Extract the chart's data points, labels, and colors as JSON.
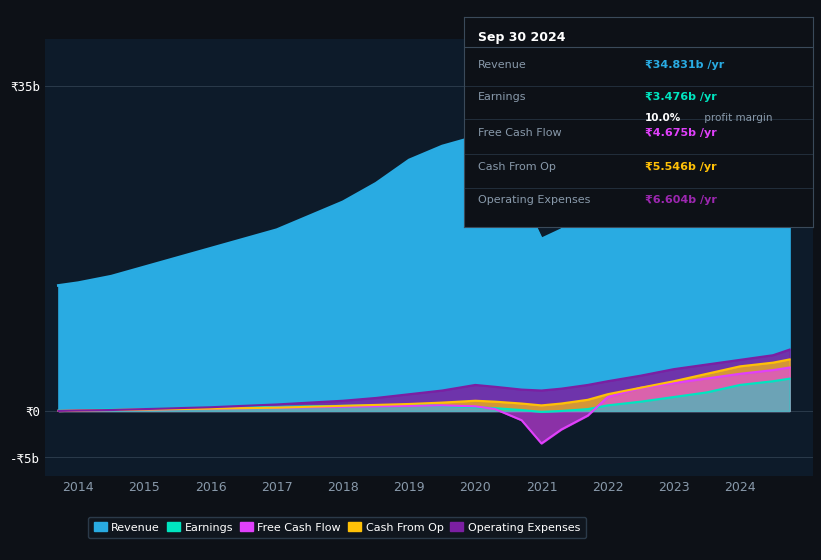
{
  "bg_color": "#0d1117",
  "plot_bg_color": "#0d1b2a",
  "years": [
    2013.7,
    2014,
    2014.5,
    2015,
    2015.5,
    2016,
    2016.5,
    2017,
    2017.5,
    2018,
    2018.5,
    2019,
    2019.5,
    2020,
    2020.3,
    2020.7,
    2021,
    2021.3,
    2021.7,
    2022,
    2022.5,
    2023,
    2023.5,
    2024,
    2024.5,
    2024.75
  ],
  "revenue": [
    13.5,
    13.8,
    14.5,
    15.5,
    16.5,
    17.5,
    18.5,
    19.5,
    21.0,
    22.5,
    24.5,
    27.0,
    28.5,
    29.5,
    28.0,
    23.0,
    18.5,
    19.5,
    22.0,
    26.0,
    29.0,
    32.5,
    33.5,
    34.5,
    34.7,
    34.831
  ],
  "earnings": [
    0.05,
    0.1,
    0.15,
    0.2,
    0.3,
    0.35,
    0.4,
    0.45,
    0.5,
    0.55,
    0.6,
    0.65,
    0.55,
    0.4,
    0.3,
    0.1,
    -0.1,
    0.0,
    0.2,
    0.6,
    1.0,
    1.5,
    2.0,
    2.8,
    3.2,
    3.476
  ],
  "free_cash_flow": [
    0.0,
    0.05,
    0.1,
    0.15,
    0.2,
    0.25,
    0.3,
    0.35,
    0.4,
    0.45,
    0.5,
    0.55,
    0.6,
    0.5,
    0.2,
    -1.0,
    -3.5,
    -2.0,
    -0.5,
    1.5,
    2.5,
    3.0,
    3.5,
    4.0,
    4.4,
    4.675
  ],
  "cash_from_op": [
    0.0,
    0.05,
    0.1,
    0.15,
    0.2,
    0.25,
    0.3,
    0.35,
    0.45,
    0.55,
    0.65,
    0.75,
    0.9,
    1.1,
    1.0,
    0.8,
    0.6,
    0.8,
    1.2,
    1.8,
    2.5,
    3.2,
    4.0,
    4.8,
    5.2,
    5.546
  ],
  "operating_expenses": [
    0.0,
    0.05,
    0.1,
    0.2,
    0.3,
    0.4,
    0.55,
    0.7,
    0.9,
    1.1,
    1.4,
    1.8,
    2.2,
    2.8,
    2.6,
    2.3,
    2.2,
    2.4,
    2.8,
    3.2,
    3.8,
    4.5,
    5.0,
    5.5,
    6.0,
    6.604
  ],
  "revenue_color": "#29abe2",
  "earnings_color": "#00e5c0",
  "fcf_color": "#e040fb",
  "cashop_color": "#ffc107",
  "opex_color": "#7b1fa2",
  "ylim_top": 40,
  "ylim_bottom": -7,
  "xlim_left": 2013.5,
  "xlim_right": 2025.1,
  "xticks": [
    2014,
    2015,
    2016,
    2017,
    2018,
    2019,
    2020,
    2021,
    2022,
    2023,
    2024
  ],
  "ytick_vals": [
    -5,
    0,
    35
  ],
  "ytick_labels": [
    "-₹5b",
    "₹0",
    "₹35b"
  ],
  "legend_labels": [
    "Revenue",
    "Earnings",
    "Free Cash Flow",
    "Cash From Op",
    "Operating Expenses"
  ],
  "info_box": {
    "title": "Sep 30 2024",
    "rows": [
      {
        "label": "Revenue",
        "value": "₹34.831b /yr",
        "value_color": "#29abe2",
        "extra": ""
      },
      {
        "label": "Earnings",
        "value": "₹3.476b /yr",
        "value_color": "#00e5c0",
        "extra": "10.0% profit margin"
      },
      {
        "label": "Free Cash Flow",
        "value": "₹4.675b /yr",
        "value_color": "#e040fb",
        "extra": ""
      },
      {
        "label": "Cash From Op",
        "value": "₹5.546b /yr",
        "value_color": "#ffc107",
        "extra": ""
      },
      {
        "label": "Operating Expenses",
        "value": "₹6.604b /yr",
        "value_color": "#9c27b0",
        "extra": ""
      }
    ]
  }
}
